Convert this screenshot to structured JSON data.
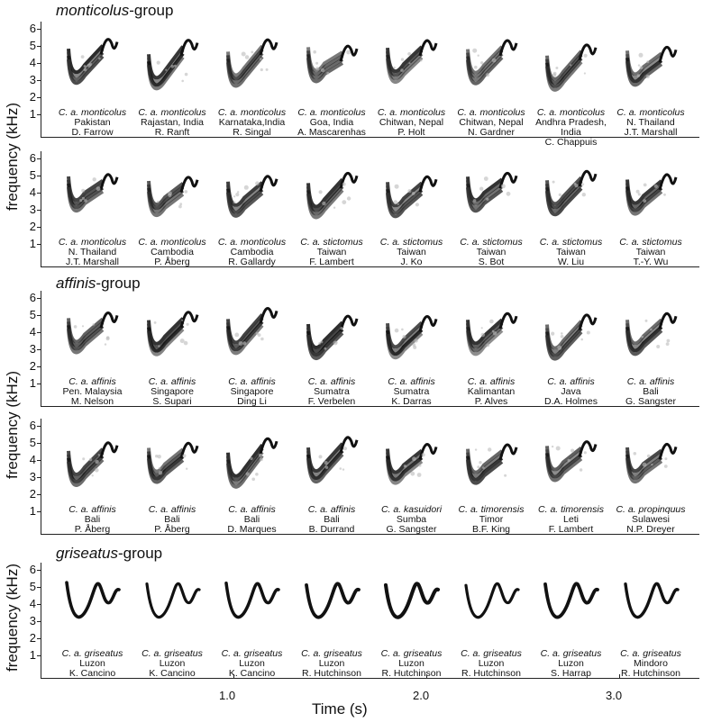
{
  "groups": [
    {
      "italic": "monticolus",
      "suffix": "-group"
    },
    {
      "italic": "affinis",
      "suffix": "-group"
    },
    {
      "italic": "griseatus",
      "suffix": "-group"
    }
  ],
  "y_axis_label": "frequency (kHz)",
  "y_ticks": [
    "1",
    "2",
    "3",
    "4",
    "5",
    "6"
  ],
  "x_axis_label": "Time (s)",
  "x_ticks": [
    "1.0",
    "2.0",
    "3.0"
  ],
  "rows": [
    {
      "group": 0,
      "items": [
        {
          "species": "C. a. monticolus",
          "loc": "Pakistan",
          "rec": "D. Farrow"
        },
        {
          "species": "C. a. monticolus",
          "loc": "Rajastan, India",
          "rec": "R. Ranft"
        },
        {
          "species": "C. a. monticolus",
          "loc": "Karnataka,India",
          "rec": "R. Singal"
        },
        {
          "species": "C. a. monticolus",
          "loc": "Goa, India",
          "rec": "A. Mascarenhas"
        },
        {
          "species": "C. a. monticolus",
          "loc": "Chitwan, Nepal",
          "rec": "P. Holt"
        },
        {
          "species": "C. a. monticolus",
          "loc": "Chitwan, Nepal",
          "rec": "N. Gardner"
        },
        {
          "species": "C. a. monticolus",
          "loc": "Andhra Pradesh, India",
          "rec": "C. Chappuis"
        },
        {
          "species": "C. a. monticolus",
          "loc": "N. Thailand",
          "rec": "J.T. Marshall"
        }
      ]
    },
    {
      "group": 0,
      "items": [
        {
          "species": "C. a. monticolus",
          "loc": "N. Thailand",
          "rec": "J.T. Marshall"
        },
        {
          "species": "C. a. monticolus",
          "loc": "Cambodia",
          "rec": "P. Åberg"
        },
        {
          "species": "C. a. monticolus",
          "loc": "Cambodia",
          "rec": "R. Gallardy"
        },
        {
          "species": "C. a. stictomus",
          "loc": "Taiwan",
          "rec": "F. Lambert"
        },
        {
          "species": "C. a. stictomus",
          "loc": "Taiwan",
          "rec": "J. Ko"
        },
        {
          "species": "C. a. stictomus",
          "loc": "Taiwan",
          "rec": "S. Bot"
        },
        {
          "species": "C. a. stictomus",
          "loc": "Taiwan",
          "rec": "W. Liu"
        },
        {
          "species": "C. a. stictomus",
          "loc": "Taiwan",
          "rec": "T.-Y. Wu"
        }
      ]
    },
    {
      "group": 1,
      "items": [
        {
          "species": "C. a. affinis",
          "loc": "Pen. Malaysia",
          "rec": "M. Nelson"
        },
        {
          "species": "C. a. affinis",
          "loc": "Singapore",
          "rec": "S. Supari"
        },
        {
          "species": "C. a. affinis",
          "loc": "Singapore",
          "rec": "Ding Li"
        },
        {
          "species": "C. a. affinis",
          "loc": "Sumatra",
          "rec": "F. Verbelen"
        },
        {
          "species": "C. a. affinis",
          "loc": "Sumatra",
          "rec": "K. Darras"
        },
        {
          "species": "C. a. affinis",
          "loc": "Kalimantan",
          "rec": "P. Alves"
        },
        {
          "species": "C. a. affinis",
          "loc": "Java",
          "rec": "D.A. Holmes"
        },
        {
          "species": "C. a. affinis",
          "loc": "Bali",
          "rec": "G. Sangster"
        }
      ]
    },
    {
      "group": 1,
      "items": [
        {
          "species": "C. a. affinis",
          "loc": "Bali",
          "rec": "P. Åberg"
        },
        {
          "species": "C. a. affinis",
          "loc": "Bali",
          "rec": "P. Åberg"
        },
        {
          "species": "C. a. affinis",
          "loc": "Bali",
          "rec": "D. Marques"
        },
        {
          "species": "C. a. affinis",
          "loc": "Bali",
          "rec": "B. Durrand"
        },
        {
          "species": "C. a. kasuidori",
          "loc": "Sumba",
          "rec": "G. Sangster"
        },
        {
          "species": "C. a. timorensis",
          "loc": "Timor",
          "rec": "B.F. King"
        },
        {
          "species": "C. a. timorensis",
          "loc": "Leti",
          "rec": "F. Lambert"
        },
        {
          "species": "C. a. propinquus",
          "loc": "Sulawesi",
          "rec": "N.P. Dreyer"
        }
      ]
    },
    {
      "group": 2,
      "items": [
        {
          "species": "C. a. griseatus",
          "loc": "Luzon",
          "rec": "K. Cancino"
        },
        {
          "species": "C. a. griseatus",
          "loc": "Luzon",
          "rec": "K. Cancino"
        },
        {
          "species": "C. a. griseatus",
          "loc": "Luzon",
          "rec": "K. Cancino"
        },
        {
          "species": "C. a. griseatus",
          "loc": "Luzon",
          "rec": "R. Hutchinson"
        },
        {
          "species": "C. a. griseatus",
          "loc": "Luzon",
          "rec": "R. Hutchinson"
        },
        {
          "species": "C. a. griseatus",
          "loc": "Luzon",
          "rec": "R. Hutchinson"
        },
        {
          "species": "C. a. griseatus",
          "loc": "Luzon",
          "rec": "S. Harrap"
        },
        {
          "species": "C. a. griseatus",
          "loc": "Mindoro",
          "rec": "R. Hutchinson"
        }
      ]
    }
  ]
}
